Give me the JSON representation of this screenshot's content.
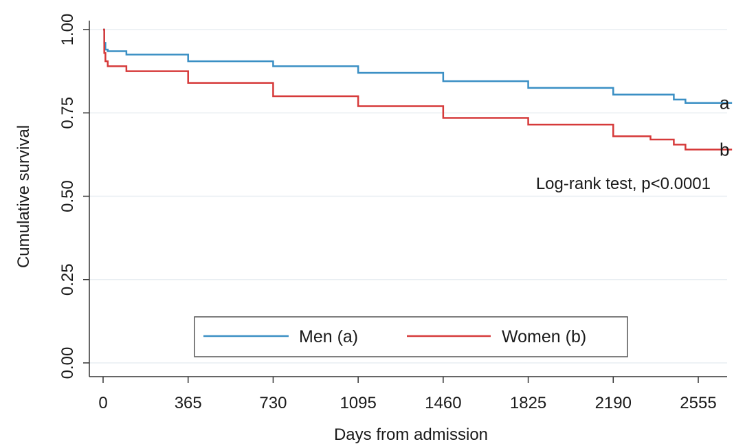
{
  "chart_data": {
    "type": "line",
    "title": "",
    "xlabel": "Days from admission",
    "ylabel": "Cumulative survival",
    "xlim": [
      0,
      2700
    ],
    "ylim": [
      0,
      1.0
    ],
    "x_ticks": [
      0,
      365,
      730,
      1095,
      1460,
      1825,
      2190,
      2555
    ],
    "x_tick_labels": [
      "0",
      "365",
      "730",
      "1095",
      "1460",
      "1825",
      "2190",
      "2555"
    ],
    "y_ticks": [
      0,
      0.25,
      0.5,
      0.75,
      1.0
    ],
    "y_tick_labels": [
      "0.00",
      "0.25",
      "0.50",
      "0.75",
      "1.00"
    ],
    "grid": "horizontal",
    "legend_position": "bottom-center",
    "annotation": "Log-rank test, p<0.0001",
    "series": [
      {
        "name": "Men (a)",
        "end_label": "a",
        "color": "#3a8fc4",
        "x": [
          0,
          5,
          10,
          20,
          100,
          365,
          730,
          1095,
          1460,
          1825,
          2190,
          2450,
          2500,
          2700
        ],
        "y": [
          1.0,
          0.96,
          0.94,
          0.935,
          0.925,
          0.905,
          0.89,
          0.87,
          0.845,
          0.825,
          0.805,
          0.79,
          0.78,
          0.78
        ]
      },
      {
        "name": "Women (b)",
        "end_label": "b",
        "color": "#d63a3a",
        "x": [
          0,
          5,
          10,
          20,
          100,
          365,
          730,
          1095,
          1460,
          1825,
          2190,
          2350,
          2450,
          2500,
          2700
        ],
        "y": [
          1.0,
          0.93,
          0.905,
          0.89,
          0.875,
          0.84,
          0.8,
          0.77,
          0.735,
          0.715,
          0.68,
          0.67,
          0.655,
          0.64,
          0.64
        ]
      }
    ]
  }
}
